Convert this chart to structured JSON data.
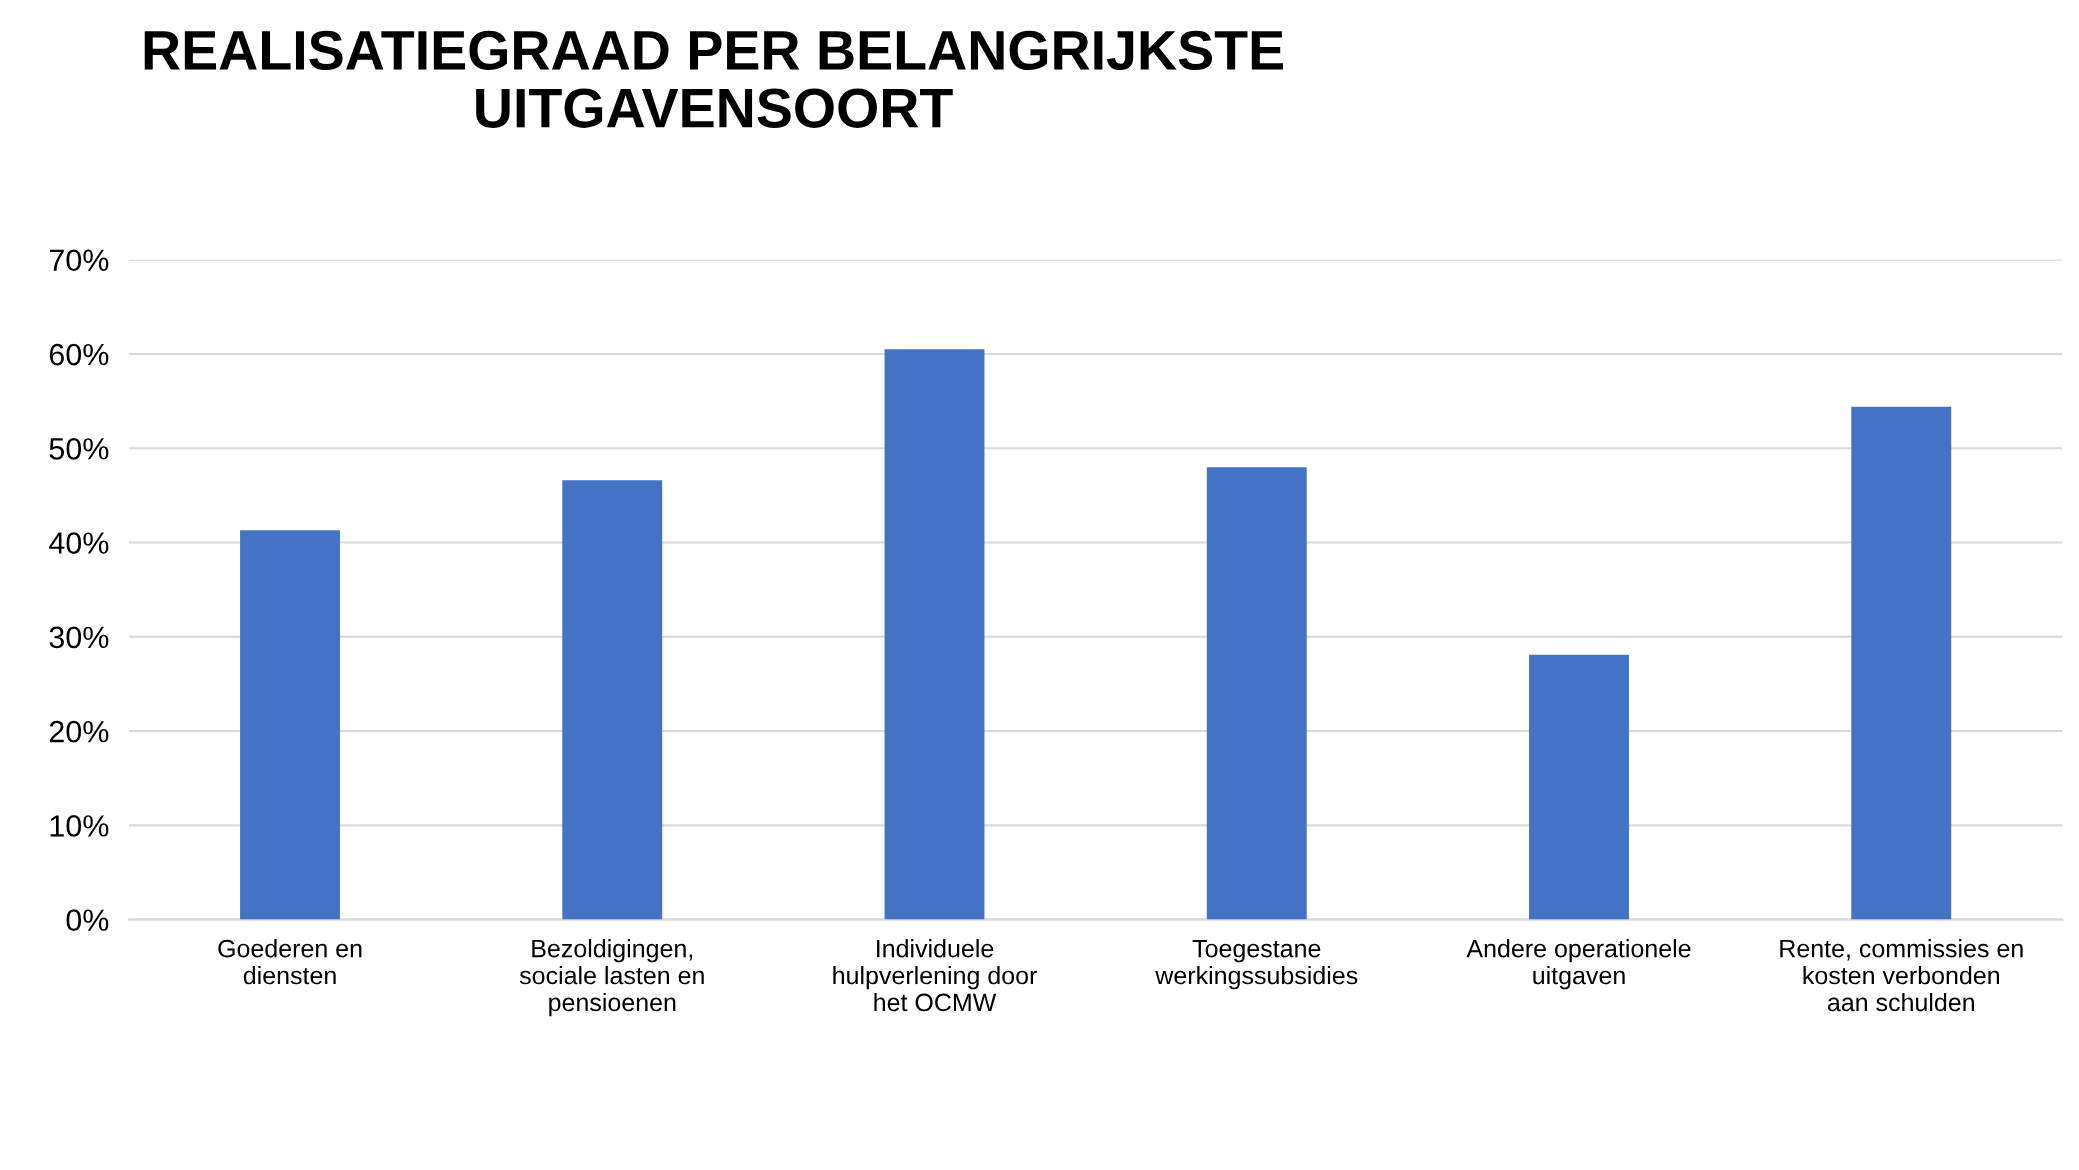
{
  "chart_data": {
    "type": "bar",
    "title": "REALISATIEGRAAD PER BELANGRIJKSTE\nUITGAVENSOORT",
    "categories": [
      "Goederen en\ndiensten",
      "Bezoldigingen,\nsociale lasten en\npensioenen",
      "Individuele\nhulpverlening door\nhet OCMW",
      "Toegestane\nwerkingssubsidies",
      "Andere operationele\nuitgaven",
      "Rente, commissies en\nkosten verbonden\naan schulden"
    ],
    "values": [
      41.3,
      46.6,
      60.5,
      48.0,
      28.1,
      54.4
    ],
    "color": "#4472c4",
    "ylim": [
      0,
      70
    ],
    "yticks": [
      {
        "value": 0,
        "label": "0%"
      },
      {
        "value": 10,
        "label": "10%"
      },
      {
        "value": 20,
        "label": "20%"
      },
      {
        "value": 30,
        "label": "30%"
      },
      {
        "value": 40,
        "label": "40%"
      },
      {
        "value": 50,
        "label": "50%"
      },
      {
        "value": 60,
        "label": "60%"
      },
      {
        "value": 70,
        "label": "70%"
      }
    ],
    "grid": "y",
    "legend": false
  }
}
